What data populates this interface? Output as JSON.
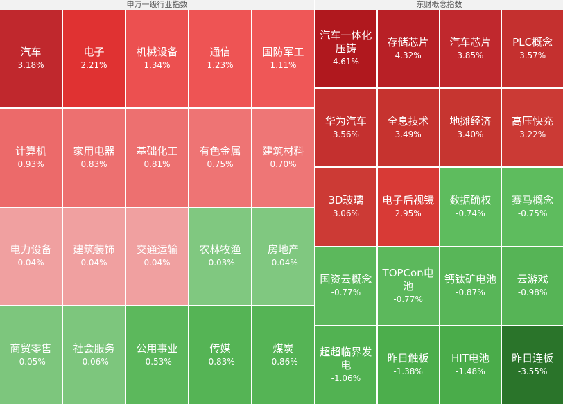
{
  "panels": [
    {
      "title": "申万一级行业指数",
      "columns": 5,
      "cells": [
        {
          "name": "汽车",
          "change": "3.18%",
          "color": "#c0282d"
        },
        {
          "name": "电子",
          "change": "2.21%",
          "color": "#e03232"
        },
        {
          "name": "机械设备",
          "change": "1.34%",
          "color": "#ec5050"
        },
        {
          "name": "通信",
          "change": "1.23%",
          "color": "#ee5454"
        },
        {
          "name": "国防军工",
          "change": "1.11%",
          "color": "#ef5757"
        },
        {
          "name": "计算机",
          "change": "0.93%",
          "color": "#ec6a6a"
        },
        {
          "name": "家用电器",
          "change": "0.83%",
          "color": "#ed7070"
        },
        {
          "name": "基础化工",
          "change": "0.81%",
          "color": "#ed7070"
        },
        {
          "name": "有色金属",
          "change": "0.75%",
          "color": "#ee7474"
        },
        {
          "name": "建筑材料",
          "change": "0.70%",
          "color": "#ee7676"
        },
        {
          "name": "电力设备",
          "change": "0.04%",
          "color": "#f0a0a0"
        },
        {
          "name": "建筑装饰",
          "change": "0.04%",
          "color": "#f0a0a0"
        },
        {
          "name": "交通运输",
          "change": "0.04%",
          "color": "#f0a0a0"
        },
        {
          "name": "农林牧渔",
          "change": "-0.03%",
          "color": "#80c880"
        },
        {
          "name": "房地产",
          "change": "-0.04%",
          "color": "#80c880"
        },
        {
          "name": "商贸零售",
          "change": "-0.05%",
          "color": "#7dc67d"
        },
        {
          "name": "社会服务",
          "change": "-0.06%",
          "color": "#7dc67d"
        },
        {
          "name": "公用事业",
          "change": "-0.53%",
          "color": "#5cb85c"
        },
        {
          "name": "传媒",
          "change": "-0.83%",
          "color": "#55b455"
        },
        {
          "name": "煤炭",
          "change": "-0.86%",
          "color": "#55b455"
        }
      ]
    },
    {
      "title": "东财概念指数",
      "columns": 4,
      "cells": [
        {
          "name": "汽车一体化压铸",
          "change": "4.61%",
          "color": "#b0181e"
        },
        {
          "name": "存储芯片",
          "change": "4.32%",
          "color": "#b82026"
        },
        {
          "name": "汽车芯片",
          "change": "3.85%",
          "color": "#c0282d"
        },
        {
          "name": "PLC概念",
          "change": "3.57%",
          "color": "#c4302f"
        },
        {
          "name": "华为汽车",
          "change": "3.56%",
          "color": "#c4302f"
        },
        {
          "name": "全息技术",
          "change": "3.49%",
          "color": "#c6332f"
        },
        {
          "name": "地摊经济",
          "change": "3.40%",
          "color": "#c63530"
        },
        {
          "name": "高压快充",
          "change": "3.22%",
          "color": "#cb3a35"
        },
        {
          "name": "3D玻璃",
          "change": "3.06%",
          "color": "#cc3a35"
        },
        {
          "name": "电子后视镜",
          "change": "2.95%",
          "color": "#d83a36"
        },
        {
          "name": "数据确权",
          "change": "-0.74%",
          "color": "#5ebc5e"
        },
        {
          "name": "赛马概念",
          "change": "-0.75%",
          "color": "#5ebc5e"
        },
        {
          "name": "国资云概念",
          "change": "-0.77%",
          "color": "#5cb85c"
        },
        {
          "name": "TOPCon电池",
          "change": "-0.77%",
          "color": "#5cb85c"
        },
        {
          "name": "钙钛矿电池",
          "change": "-0.87%",
          "color": "#58b658"
        },
        {
          "name": "云游戏",
          "change": "-0.98%",
          "color": "#56b456"
        },
        {
          "name": "超超临界发电",
          "change": "-1.06%",
          "color": "#52b252"
        },
        {
          "name": "昨日触板",
          "change": "-1.38%",
          "color": "#4cae4c"
        },
        {
          "name": "HIT电池",
          "change": "-1.48%",
          "color": "#4aac4a"
        },
        {
          "name": "昨日连板",
          "change": "-3.55%",
          "color": "#2a742a"
        }
      ]
    }
  ]
}
